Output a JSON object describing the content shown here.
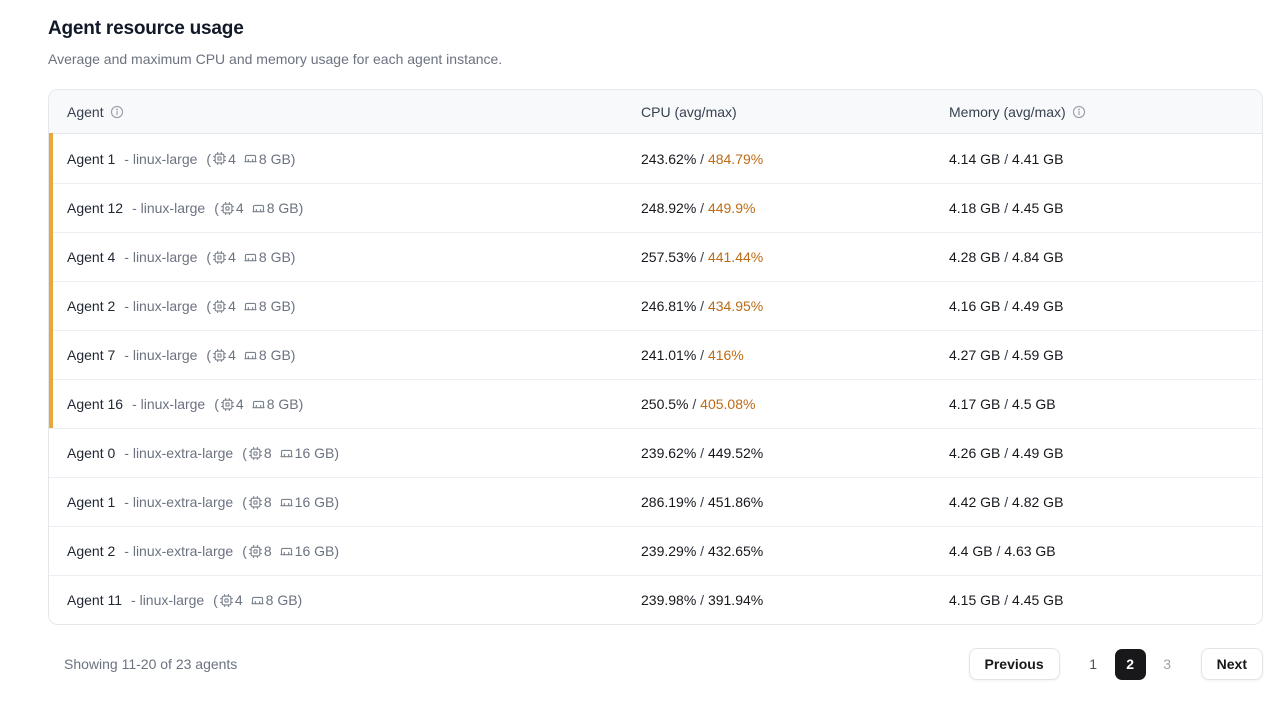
{
  "page": {
    "title": "Agent resource usage",
    "subtitle": "Average and maximum CPU and memory usage for each agent instance."
  },
  "colors": {
    "highlight_bar": "#e9a63c",
    "warning_text": "#bd6b15",
    "active_page_bg": "#18181b"
  },
  "table": {
    "columns": {
      "agent": "Agent",
      "cpu": "CPU (avg/max)",
      "memory": "Memory (avg/max)"
    },
    "size_prefix": "- ",
    "spec_open": "(",
    "spec_close": ")",
    "value_separator": " / ",
    "rows": [
      {
        "name": "Agent 1",
        "size": "linux-large",
        "cpus": "4",
        "mem": "8 GB",
        "cpu_avg": "243.62%",
        "cpu_max": "484.79%",
        "mem_avg": "4.14 GB",
        "mem_max": "4.41 GB",
        "highlight": true
      },
      {
        "name": "Agent 12",
        "size": "linux-large",
        "cpus": "4",
        "mem": "8 GB",
        "cpu_avg": "248.92%",
        "cpu_max": "449.9%",
        "mem_avg": "4.18 GB",
        "mem_max": "4.45 GB",
        "highlight": true
      },
      {
        "name": "Agent 4",
        "size": "linux-large",
        "cpus": "4",
        "mem": "8 GB",
        "cpu_avg": "257.53%",
        "cpu_max": "441.44%",
        "mem_avg": "4.28 GB",
        "mem_max": "4.84 GB",
        "highlight": true
      },
      {
        "name": "Agent 2",
        "size": "linux-large",
        "cpus": "4",
        "mem": "8 GB",
        "cpu_avg": "246.81%",
        "cpu_max": "434.95%",
        "mem_avg": "4.16 GB",
        "mem_max": "4.49 GB",
        "highlight": true
      },
      {
        "name": "Agent 7",
        "size": "linux-large",
        "cpus": "4",
        "mem": "8 GB",
        "cpu_avg": "241.01%",
        "cpu_max": "416%",
        "mem_avg": "4.27 GB",
        "mem_max": "4.59 GB",
        "highlight": true
      },
      {
        "name": "Agent 16",
        "size": "linux-large",
        "cpus": "4",
        "mem": "8 GB",
        "cpu_avg": "250.5%",
        "cpu_max": "405.08%",
        "mem_avg": "4.17 GB",
        "mem_max": "4.5 GB",
        "highlight": true
      },
      {
        "name": "Agent 0",
        "size": "linux-extra-large",
        "cpus": "8",
        "mem": "16 GB",
        "cpu_avg": "239.62%",
        "cpu_max": "449.52%",
        "mem_avg": "4.26 GB",
        "mem_max": "4.49 GB",
        "highlight": false
      },
      {
        "name": "Agent 1",
        "size": "linux-extra-large",
        "cpus": "8",
        "mem": "16 GB",
        "cpu_avg": "286.19%",
        "cpu_max": "451.86%",
        "mem_avg": "4.42 GB",
        "mem_max": "4.82 GB",
        "highlight": false
      },
      {
        "name": "Agent 2",
        "size": "linux-extra-large",
        "cpus": "8",
        "mem": "16 GB",
        "cpu_avg": "239.29%",
        "cpu_max": "432.65%",
        "mem_avg": "4.4 GB",
        "mem_max": "4.63 GB",
        "highlight": false
      },
      {
        "name": "Agent 11",
        "size": "linux-large",
        "cpus": "4",
        "mem": "8 GB",
        "cpu_avg": "239.98%",
        "cpu_max": "391.94%",
        "mem_avg": "4.15 GB",
        "mem_max": "4.45 GB",
        "highlight": false
      }
    ]
  },
  "footer": {
    "summary": "Showing 11-20 of 23 agents",
    "previous_label": "Previous",
    "next_label": "Next",
    "pages": [
      {
        "label": "1",
        "active": false,
        "muted": false
      },
      {
        "label": "2",
        "active": true,
        "muted": false
      },
      {
        "label": "3",
        "active": false,
        "muted": true
      }
    ]
  }
}
